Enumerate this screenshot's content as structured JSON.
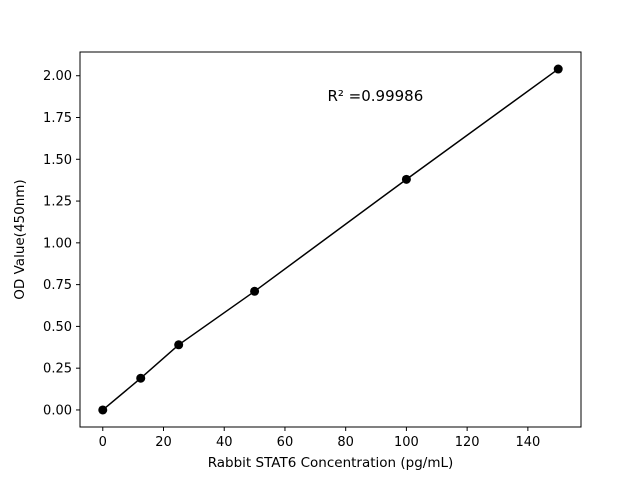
{
  "chart_data": {
    "type": "scatter",
    "title": "",
    "xlabel": "Rabbit STAT6 Concentration (pg/mL)",
    "ylabel": "OD Value(450nm)",
    "x": [
      0,
      12.5,
      25,
      50,
      100,
      150
    ],
    "y": [
      0.0,
      0.19,
      0.39,
      0.71,
      1.38,
      2.04
    ],
    "series_name": "standard-curve",
    "line_through_points": true,
    "xlim": [
      -7.5,
      157.5
    ],
    "ylim": [
      -0.102,
      2.142
    ],
    "xticks": [
      {
        "v": 0,
        "label": "0"
      },
      {
        "v": 20,
        "label": "20"
      },
      {
        "v": 40,
        "label": "40"
      },
      {
        "v": 60,
        "label": "60"
      },
      {
        "v": 80,
        "label": "80"
      },
      {
        "v": 100,
        "label": "100"
      },
      {
        "v": 120,
        "label": "120"
      },
      {
        "v": 140,
        "label": "140"
      }
    ],
    "yticks": [
      {
        "v": 0.0,
        "label": "0.00"
      },
      {
        "v": 0.25,
        "label": "0.25"
      },
      {
        "v": 0.5,
        "label": "0.50"
      },
      {
        "v": 0.75,
        "label": "0.75"
      },
      {
        "v": 1.0,
        "label": "1.00"
      },
      {
        "v": 1.25,
        "label": "1.25"
      },
      {
        "v": 1.5,
        "label": "1.50"
      },
      {
        "v": 1.75,
        "label": "1.75"
      },
      {
        "v": 2.0,
        "label": "2.00"
      }
    ],
    "annotation": {
      "text": "R² =0.99986",
      "x": 74,
      "y": 1.85
    },
    "grid": false,
    "legend": "none",
    "colors": {
      "line": "#000000",
      "marker": "#000000",
      "axes": "#000000",
      "background": "#ffffff"
    }
  }
}
